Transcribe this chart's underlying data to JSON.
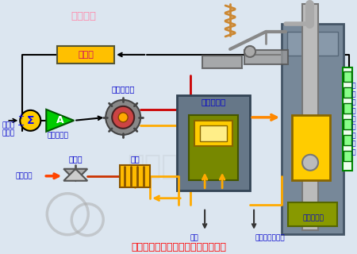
{
  "bg_color": "#dce6f0",
  "title": "高压主汽阀和调节汽阀的工作原理图",
  "title_color": "#ff0000",
  "labels": {
    "关主汽阀": "关主汽阀",
    "解调器": "解调器",
    "电液转换器": "电液转换器",
    "伺服放大器": "伺服放大器",
    "控制器来信号": "控制器\n来信号",
    "快速卸载阀": "快速卸载阀",
    "隔绝阀": "隔绝阀",
    "滤网": "滤网",
    "高压供油": "高压供油",
    "回油": "回油",
    "主汽阀危急遮断": "主汽阀危急遮断",
    "单侧油动机": "单侧油动机",
    "线性位移差动变送器": "线\n性\n位\n移\n差\n动\n变\n送\n器"
  },
  "colors": {
    "box_yellow": "#ffc000",
    "box_text_pink": "#cc0066",
    "sum_yellow": "#ffcc00",
    "amp_green": "#00cc00",
    "arrow_orange": "#ff8800",
    "oil_red": "#cc3300",
    "blue_label": "#0000cc",
    "valve_gray": "#778899",
    "stem_gray": "#bbbbbb",
    "actuator_yellow": "#ffcc00",
    "filter_orange": "#ffaa00",
    "pink_label": "#ff88aa"
  }
}
